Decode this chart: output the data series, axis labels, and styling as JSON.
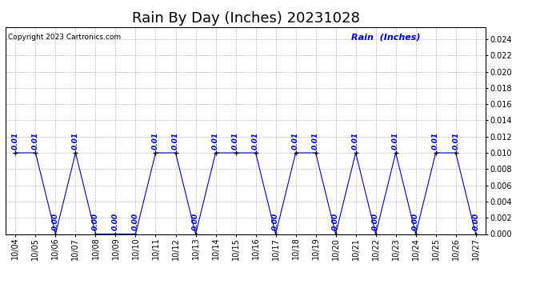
{
  "title": "Rain By Day (Inches) 20231028",
  "copyright": "Copyright 2023 Cartronics.com",
  "legend_label": "Rain  (Inches)",
  "dates": [
    "10/04",
    "10/05",
    "10/06",
    "10/07",
    "10/08",
    "10/09",
    "10/10",
    "10/11",
    "10/12",
    "10/13",
    "10/14",
    "10/15",
    "10/16",
    "10/17",
    "10/18",
    "10/19",
    "10/20",
    "10/21",
    "10/22",
    "10/23",
    "10/24",
    "10/25",
    "10/26",
    "10/27"
  ],
  "values": [
    0.01,
    0.01,
    0.0,
    0.01,
    0.0,
    0.0,
    0.0,
    0.01,
    0.01,
    0.0,
    0.01,
    0.01,
    0.01,
    0.0,
    0.01,
    0.01,
    0.0,
    0.01,
    0.0,
    0.01,
    0.0,
    0.01,
    0.01,
    0.0
  ],
  "line_color": "#0000cc",
  "marker_color": "#000000",
  "label_color": "#0000cc",
  "bg_color": "#ffffff",
  "grid_color": "#bbbbbb",
  "ylim": [
    0.0,
    0.0255
  ],
  "yticks": [
    0.0,
    0.002,
    0.004,
    0.006,
    0.008,
    0.01,
    0.012,
    0.014,
    0.016,
    0.018,
    0.02,
    0.022,
    0.024
  ],
  "title_fontsize": 13,
  "data_label_fontsize": 6.5,
  "tick_fontsize": 7,
  "copyright_fontsize": 6.5,
  "legend_fontsize": 8
}
